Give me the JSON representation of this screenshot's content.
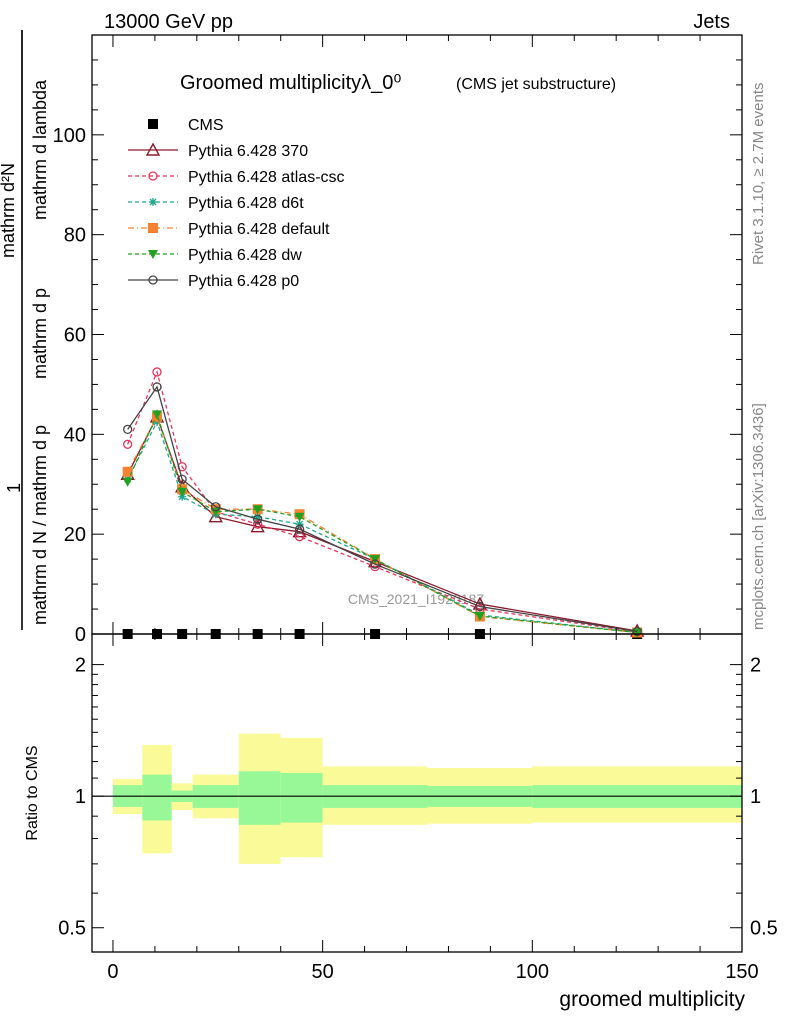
{
  "header": {
    "left": "13000 GeV pp",
    "right": "Jets"
  },
  "side": {
    "rivet": "Rivet 3.1.10, ≥ 2.7M events",
    "mcplots": "mcplots.cern.ch [arXiv:1306.3436]"
  },
  "chart_data": {
    "type": "line",
    "title": "Groomed multiplicityλ_0⁰",
    "title_sub": "(CMS jet substructure)",
    "ylabel_main": "1 / (mathrm d N / mathrm d p_T) · mathrm d²N / (mathrm d p_T mathrm d lambda)",
    "ylabel_lines": [
      "mathrm d²N",
      "mathrm d p",
      "mathrm d lambda",
      "mathrm d N / mathrm d p"
    ],
    "ylabel_number": "1",
    "xlabel": "groomed multiplicity",
    "ratio_ylabel": "Ratio to CMS",
    "watermark": "CMS_2021_I1920187",
    "xlim": [
      -5,
      150
    ],
    "ylim": [
      0,
      120
    ],
    "x_ticks": [
      "0",
      "50",
      "100",
      "150"
    ],
    "y_ticks": [
      "0",
      "20",
      "40",
      "60",
      "80",
      "100"
    ],
    "ratio_ylim": [
      0.44,
      2.35
    ],
    "ratio_ticks": [
      "0.5",
      "1",
      "2"
    ],
    "x": [
      3.5,
      10.5,
      16.5,
      24.5,
      34.5,
      44.5,
      62.5,
      87.5,
      125
    ],
    "series": [
      {
        "name": "CMS",
        "color": "#000000",
        "marker": "square",
        "dash": "none",
        "values": [
          0,
          0,
          0,
          0,
          0,
          0,
          0,
          0,
          0
        ]
      },
      {
        "name": "Pythia 6.428 370",
        "color": "#8b1a2b",
        "marker": "triangle-open",
        "dash": "solid",
        "values": [
          32.0,
          43.5,
          29.5,
          23.5,
          21.5,
          20.5,
          14.5,
          6.0,
          0.6
        ]
      },
      {
        "name": "Pythia 6.428 atlas-csc",
        "color": "#e8355e",
        "marker": "circle-open",
        "dash": "4,3",
        "values": [
          38.0,
          52.5,
          33.5,
          24.5,
          22.0,
          19.5,
          13.5,
          5.0,
          0.4
        ]
      },
      {
        "name": "Pythia 6.428 d6t",
        "color": "#1aa88a",
        "marker": "star",
        "dash": "4,3",
        "values": [
          31.0,
          42.5,
          27.5,
          24.0,
          23.5,
          22.0,
          15.0,
          3.8,
          0.3
        ]
      },
      {
        "name": "Pythia 6.428 default",
        "color": "#f58231",
        "marker": "square",
        "dash": "6,3,1,3",
        "values": [
          32.5,
          43.5,
          29.0,
          25.0,
          25.0,
          24.0,
          15.0,
          3.5,
          0.3
        ]
      },
      {
        "name": "Pythia 6.428 dw",
        "color": "#22a022",
        "marker": "triangle-down",
        "dash": "4,3",
        "values": [
          30.5,
          44.0,
          28.5,
          24.5,
          25.0,
          23.5,
          15.0,
          3.6,
          0.3
        ]
      },
      {
        "name": "Pythia 6.428 p0",
        "color": "#444444",
        "marker": "circle-open",
        "dash": "solid",
        "values": [
          41.0,
          49.5,
          31.0,
          25.5,
          23.0,
          21.0,
          14.0,
          5.5,
          0.5
        ]
      }
    ],
    "ratio_bands": [
      {
        "x0": 0,
        "x1": 7,
        "inner": [
          0.945,
          1.06
        ],
        "outer": [
          0.91,
          1.095
        ]
      },
      {
        "x0": 7,
        "x1": 14,
        "inner": [
          0.88,
          1.12
        ],
        "outer": [
          0.74,
          1.31
        ]
      },
      {
        "x0": 14,
        "x1": 19,
        "inner": [
          0.97,
          1.03
        ],
        "outer": [
          0.93,
          1.07
        ]
      },
      {
        "x0": 19,
        "x1": 30,
        "inner": [
          0.94,
          1.06
        ],
        "outer": [
          0.89,
          1.12
        ]
      },
      {
        "x0": 30,
        "x1": 40,
        "inner": [
          0.86,
          1.14
        ],
        "outer": [
          0.7,
          1.39
        ]
      },
      {
        "x0": 40,
        "x1": 50,
        "inner": [
          0.87,
          1.13
        ],
        "outer": [
          0.725,
          1.36
        ]
      },
      {
        "x0": 50,
        "x1": 75,
        "inner": [
          0.94,
          1.06
        ],
        "outer": [
          0.86,
          1.17
        ]
      },
      {
        "x0": 75,
        "x1": 100,
        "inner": [
          0.945,
          1.055
        ],
        "outer": [
          0.865,
          1.16
        ]
      },
      {
        "x0": 100,
        "x1": 150,
        "inner": [
          0.94,
          1.06
        ],
        "outer": [
          0.87,
          1.17
        ]
      }
    ],
    "band_colors": {
      "inner": "#98f898",
      "outer": "#fafa98"
    },
    "grid": false,
    "legend_placement": "top-left"
  }
}
